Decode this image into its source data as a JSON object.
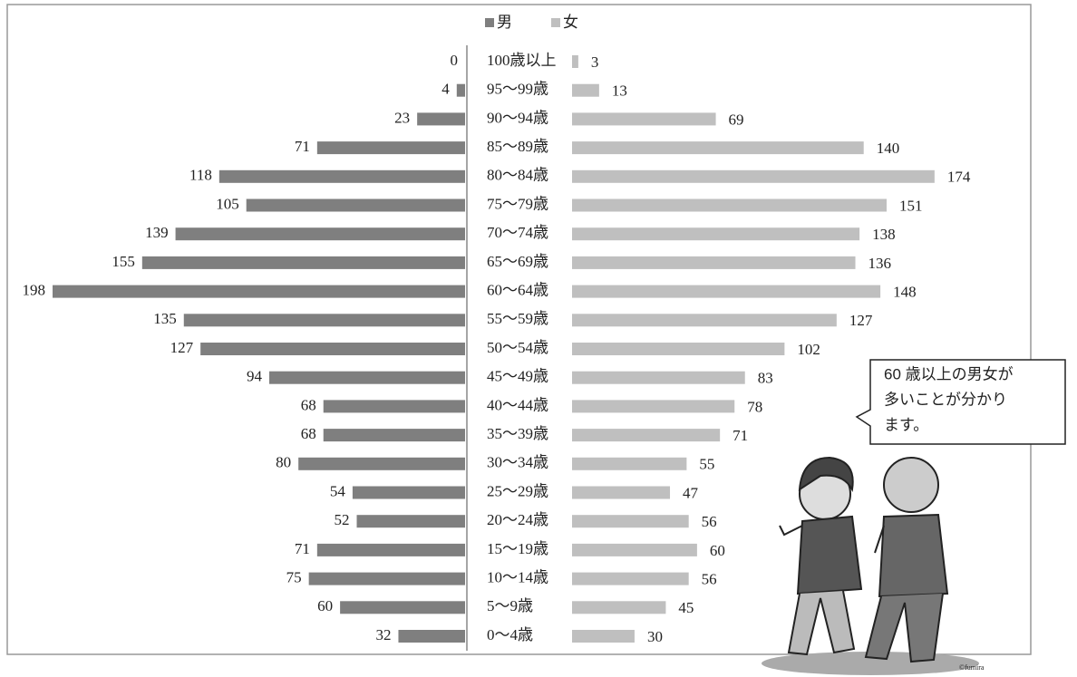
{
  "chart_data": {
    "type": "pyramid",
    "categories": [
      "100歳以上",
      "95～99歳",
      "90～94歳",
      "85～89歳",
      "80～84歳",
      "75～79歳",
      "70～74歳",
      "65～69歳",
      "60～64歳",
      "55～59歳",
      "50～54歳",
      "45～49歳",
      "40～44歳",
      "35～39歳",
      "30～34歳",
      "25～29歳",
      "20～24歳",
      "15～19歳",
      "10～14歳",
      "5～9歳",
      "0～4歳"
    ],
    "series": [
      {
        "name": "男",
        "color": "#7f7f7f",
        "values": [
          0,
          4,
          23,
          71,
          118,
          105,
          139,
          155,
          198,
          135,
          127,
          94,
          68,
          68,
          80,
          54,
          52,
          71,
          75,
          60,
          32
        ]
      },
      {
        "name": "女",
        "color": "#bfbfbf",
        "values": [
          3,
          13,
          69,
          140,
          174,
          151,
          138,
          136,
          148,
          127,
          102,
          83,
          78,
          71,
          55,
          47,
          56,
          60,
          56,
          45,
          30
        ]
      }
    ],
    "annotation": [
      "60 歳以上の男女が",
      "多いことが分かり",
      "ます。"
    ],
    "credit": "©fumira"
  }
}
